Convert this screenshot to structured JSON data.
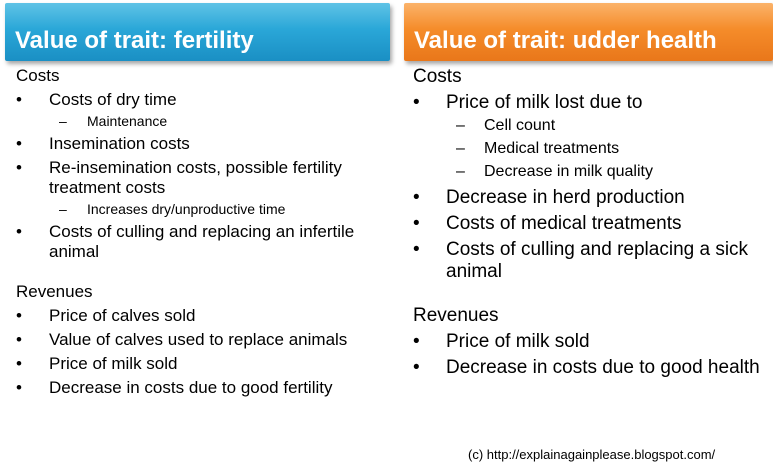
{
  "left": {
    "title": "Value of trait: fertility",
    "costs_heading": "Costs",
    "costs": [
      {
        "text": "Costs of dry time",
        "sub": [
          "Maintenance"
        ]
      },
      {
        "text": "Insemination costs",
        "sub": []
      },
      {
        "text": "Re-insemination costs, possible fertility treatment costs",
        "sub": [
          "Increases dry/unproductive time"
        ]
      },
      {
        "text": "Costs of culling and replacing an infertile animal",
        "sub": []
      }
    ],
    "revenues_heading": "Revenues",
    "revenues": [
      "Price of calves sold",
      "Value of calves used to replace animals",
      "Price of milk sold",
      "Decrease in costs due to good fertility"
    ]
  },
  "right": {
    "title": "Value of trait: udder health",
    "costs_heading": "Costs",
    "costs": [
      {
        "text": "Price of milk lost due to",
        "sub": [
          "Cell count",
          "Medical treatments",
          "Decrease in milk quality"
        ]
      },
      {
        "text": "Decrease in herd production",
        "sub": []
      },
      {
        "text": "Costs of medical treatments",
        "sub": []
      },
      {
        "text": "Costs of culling and replacing a sick animal",
        "sub": []
      }
    ],
    "revenues_heading": "Revenues",
    "revenues": [
      "Price of milk sold",
      "Decrease in costs due to good health"
    ]
  },
  "footer": "(c) http://explainagainplease.blogspot.com/",
  "colors": {
    "left_header": "#2aa7d8",
    "right_header": "#f58c2a"
  }
}
